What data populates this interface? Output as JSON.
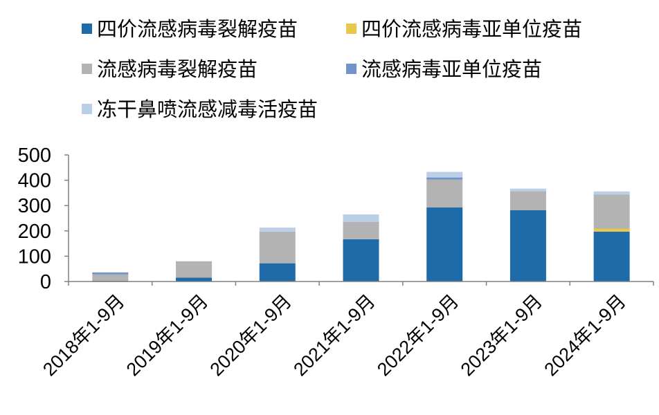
{
  "chart_data": {
    "type": "bar",
    "stacked": true,
    "categories": [
      "2018年1-9月",
      "2019年1-9月",
      "2020年1-9月",
      "2021年1-9月",
      "2022年1-9月",
      "2023年1-9月",
      "2024年1-9月"
    ],
    "series": [
      {
        "name": "四价流感病毒裂解疫苗",
        "color": "#1F6BAA",
        "values": [
          3,
          15,
          72,
          167,
          293,
          282,
          197
        ]
      },
      {
        "name": "四价流感病毒亚单位疫苗",
        "color": "#E8C84B",
        "values": [
          0,
          0,
          0,
          0,
          0,
          0,
          12
        ]
      },
      {
        "name": "流感病毒裂解疫苗",
        "color": "#B3B3B3",
        "values": [
          25,
          65,
          125,
          68,
          110,
          75,
          135
        ]
      },
      {
        "name": "流感病毒亚单位疫苗",
        "color": "#7293C7",
        "values": [
          8,
          0,
          0,
          0,
          8,
          0,
          0
        ]
      },
      {
        "name": "冻干鼻喷流感减毒活疫苗",
        "color": "#BBCFE6",
        "values": [
          0,
          0,
          16,
          30,
          22,
          10,
          12
        ]
      }
    ],
    "yticks": [
      0,
      100,
      200,
      300,
      400,
      500
    ],
    "ylim": [
      0,
      500
    ],
    "title": "",
    "xlabel": "",
    "ylabel": "",
    "legend_position": "top",
    "grid": false
  }
}
